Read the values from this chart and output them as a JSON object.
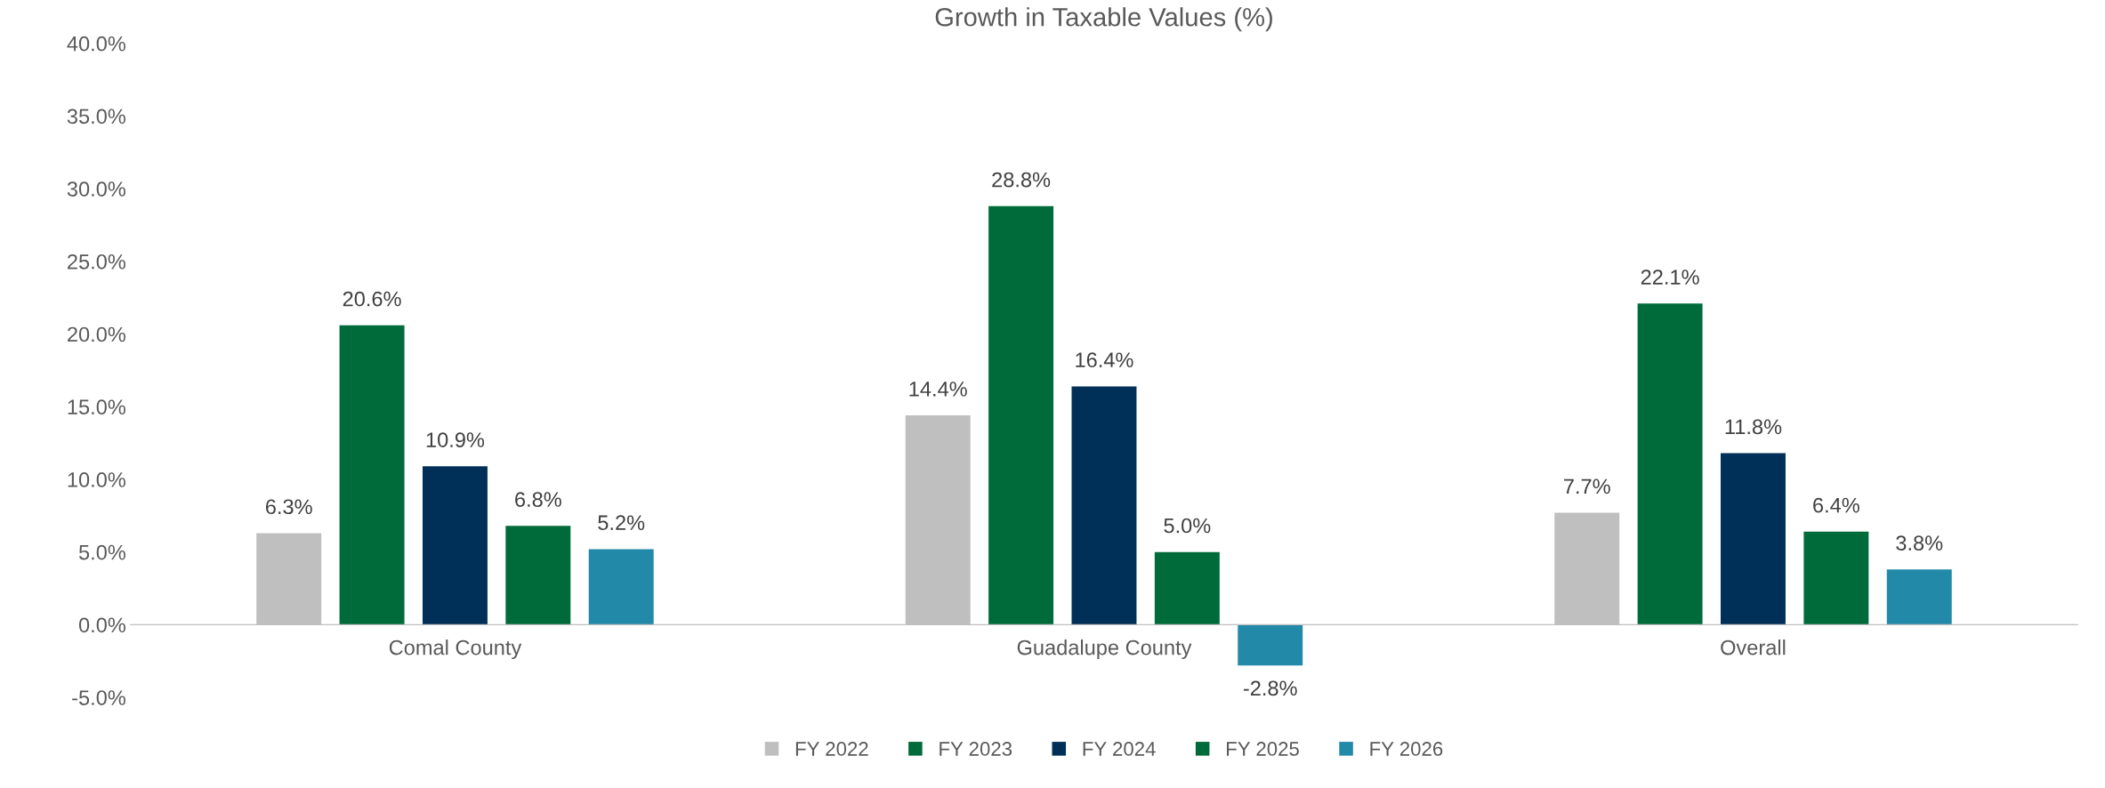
{
  "chart_data": {
    "type": "bar",
    "title": "Growth in Taxable Values (%)",
    "categories": [
      "Comal County",
      "Guadalupe County",
      "Overall"
    ],
    "series": [
      {
        "name": "FY 2022",
        "color": "#bfbfbf",
        "values": [
          6.3,
          14.4,
          7.7
        ],
        "value_labels": [
          "6.3%",
          "14.4%",
          "7.7%"
        ]
      },
      {
        "name": "FY 2023",
        "color": "#006b3a",
        "values": [
          20.6,
          28.8,
          22.1
        ],
        "value_labels": [
          "20.6%",
          "28.8%",
          "22.1%"
        ]
      },
      {
        "name": "FY 2024",
        "color": "#003057",
        "values": [
          10.9,
          16.4,
          11.8
        ],
        "value_labels": [
          "10.9%",
          "16.4%",
          "11.8%"
        ]
      },
      {
        "name": "FY 2025",
        "color": "#006b3a",
        "values": [
          6.8,
          5.0,
          6.4
        ],
        "value_labels": [
          "6.8%",
          "5.0%",
          "6.4%"
        ]
      },
      {
        "name": "FY 2026",
        "color": "#2389a9",
        "values": [
          5.2,
          -2.8,
          3.8
        ],
        "value_labels": [
          "5.2%",
          "-2.8%",
          "3.8%"
        ]
      }
    ],
    "ylim": [
      -5,
      40
    ],
    "yticks": [
      {
        "value": -5,
        "label": "-5.0%"
      },
      {
        "value": 0,
        "label": "0.0%"
      },
      {
        "value": 5,
        "label": "5.0%"
      },
      {
        "value": 10,
        "label": "10.0%"
      },
      {
        "value": 15,
        "label": "15.0%"
      },
      {
        "value": 20,
        "label": "20.0%"
      },
      {
        "value": 25,
        "label": "25.0%"
      },
      {
        "value": 30,
        "label": "30.0%"
      },
      {
        "value": 35,
        "label": "35.0%"
      },
      {
        "value": 40,
        "label": "40.0%"
      }
    ],
    "grid": false,
    "legend": "bottom"
  }
}
